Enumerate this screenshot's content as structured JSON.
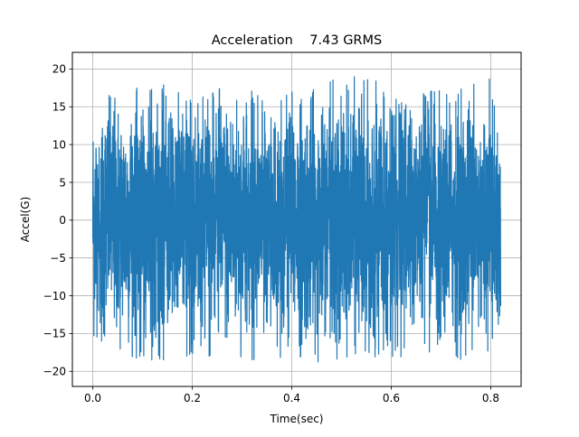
{
  "chart_data": {
    "type": "line",
    "title": "Acceleration    7.43 GRMS",
    "xlabel": "Time(sec)",
    "ylabel": "Accel(G)",
    "xlim": [
      -0.041,
      0.861
    ],
    "ylim": [
      -22.0,
      22.2
    ],
    "xticks": [
      0.0,
      0.2,
      0.4,
      0.6,
      0.8
    ],
    "xtick_labels": [
      "0.0",
      "0.2",
      "0.4",
      "0.6",
      "0.8"
    ],
    "yticks": [
      -20,
      -15,
      -10,
      -5,
      0,
      5,
      10,
      15,
      20
    ],
    "ytick_labels": [
      "−20",
      "−15",
      "−10",
      "−5",
      "0",
      "5",
      "10",
      "15",
      "20"
    ],
    "grid": true,
    "series": [
      {
        "color": "#1f77b4",
        "duration": 0.82,
        "rms": 7.43,
        "peak_max": 20.2,
        "peak_min": -20.2,
        "x": [
          0.0,
          0.05,
          0.1,
          0.15,
          0.2,
          0.25,
          0.3,
          0.35,
          0.4,
          0.45,
          0.5,
          0.55,
          0.6,
          0.65,
          0.7,
          0.75,
          0.8,
          0.82
        ],
        "y_max": [
          17.3,
          17.9,
          17.5,
          18.0,
          16.5,
          17.5,
          17.5,
          17.0,
          17.5,
          17.5,
          20.0,
          19.5,
          17.0,
          17.0,
          17.5,
          17.5,
          19.5,
          7.8
        ],
        "y_min": [
          -15.7,
          -18.2,
          -18.5,
          -18.8,
          -18.5,
          -18.5,
          -19.5,
          -18.5,
          -18.0,
          -19.0,
          -19.0,
          -18.5,
          -18.5,
          -20.2,
          -19.0,
          -18.5,
          -18.0,
          -12.5
        ]
      }
    ]
  }
}
